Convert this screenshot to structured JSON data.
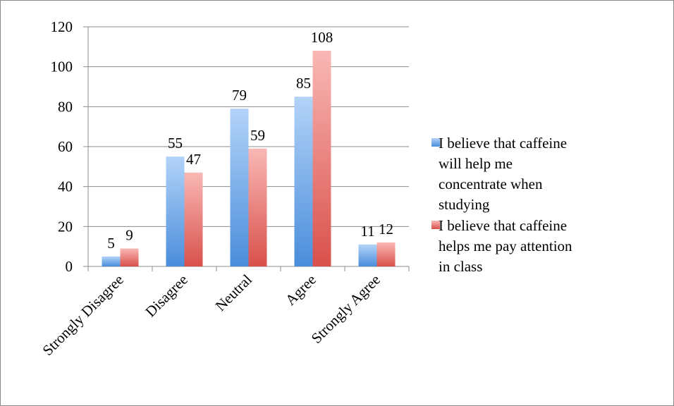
{
  "chart_data": {
    "type": "bar",
    "categories": [
      "Strongly Disagree",
      "Disagree",
      "Neutral",
      "Agree",
      "Strongly Agree"
    ],
    "series": [
      {
        "name": "I believe that caffeine will help me concentrate when studying",
        "color": "#5b9be6",
        "values": [
          5,
          55,
          79,
          85,
          11
        ]
      },
      {
        "name": "I believe that caffeine helps me pay attention in class",
        "color": "#e8625e",
        "values": [
          9,
          47,
          59,
          108,
          12
        ]
      }
    ],
    "ylim": [
      0,
      120
    ],
    "yticks": [
      0,
      20,
      40,
      60,
      80,
      100,
      120
    ],
    "grid": true,
    "legend": "right"
  }
}
